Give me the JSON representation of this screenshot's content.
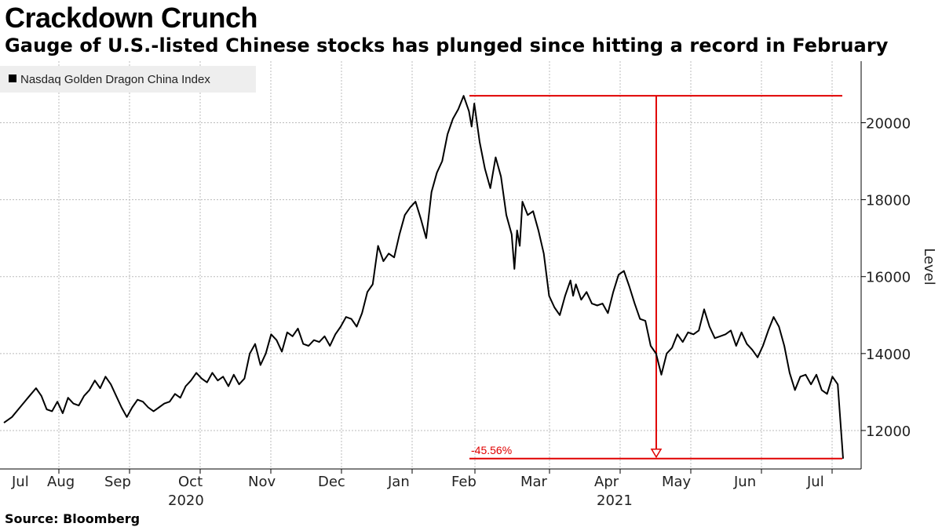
{
  "header": {
    "title": "Crackdown Crunch",
    "subtitle": "Gauge of U.S.-listed Chinese stocks has plunged since hitting a record in February"
  },
  "footer": {
    "source": "Source: Bloomberg"
  },
  "colors": {
    "line": "#000000",
    "annotation": "#e00000",
    "grid": "#bbbbbb",
    "legend_bg": "#eeeeee"
  },
  "chart_data": {
    "type": "line",
    "title": "Crackdown Crunch",
    "ylabel": "Level",
    "xlabel": "",
    "ylim": [
      11000,
      21600
    ],
    "yticks": [
      12000,
      14000,
      16000,
      18000,
      20000
    ],
    "x_month_labels": [
      "Jul",
      "Aug",
      "Sep",
      "Oct",
      "Nov",
      "Dec",
      "Jan",
      "Feb",
      "Mar",
      "Apr",
      "May",
      "Jun",
      "Jul"
    ],
    "year_labels": [
      "2020",
      "2021"
    ],
    "legend": [
      "Nasdaq Golden Dragon China Index"
    ],
    "legend_position": "top-left",
    "annotations": [
      {
        "type": "peak_line",
        "value": 20700
      },
      {
        "type": "trough_line",
        "value": 11270
      },
      {
        "type": "percent_change",
        "label": "-45.56%"
      }
    ],
    "series": [
      {
        "name": "Nasdaq Golden Dragon China Index",
        "note": "x = trading-day index from early Jul 2020 to late Jul 2021",
        "points": [
          [
            0,
            12200
          ],
          [
            3,
            12350
          ],
          [
            6,
            12600
          ],
          [
            9,
            12850
          ],
          [
            12,
            13100
          ],
          [
            14,
            12900
          ],
          [
            16,
            12550
          ],
          [
            18,
            12500
          ],
          [
            20,
            12750
          ],
          [
            22,
            12450
          ],
          [
            24,
            12850
          ],
          [
            26,
            12700
          ],
          [
            28,
            12650
          ],
          [
            30,
            12900
          ],
          [
            32,
            13050
          ],
          [
            34,
            13300
          ],
          [
            36,
            13100
          ],
          [
            38,
            13400
          ],
          [
            40,
            13200
          ],
          [
            42,
            12900
          ],
          [
            44,
            12600
          ],
          [
            46,
            12350
          ],
          [
            48,
            12600
          ],
          [
            50,
            12800
          ],
          [
            52,
            12750
          ],
          [
            54,
            12600
          ],
          [
            56,
            12500
          ],
          [
            58,
            12600
          ],
          [
            60,
            12700
          ],
          [
            62,
            12750
          ],
          [
            64,
            12950
          ],
          [
            66,
            12850
          ],
          [
            68,
            13150
          ],
          [
            70,
            13300
          ],
          [
            72,
            13500
          ],
          [
            74,
            13350
          ],
          [
            76,
            13250
          ],
          [
            78,
            13500
          ],
          [
            80,
            13300
          ],
          [
            82,
            13400
          ],
          [
            84,
            13150
          ],
          [
            86,
            13450
          ],
          [
            88,
            13200
          ],
          [
            90,
            13350
          ],
          [
            92,
            14000
          ],
          [
            94,
            14250
          ],
          [
            96,
            13700
          ],
          [
            98,
            14000
          ],
          [
            100,
            14500
          ],
          [
            102,
            14350
          ],
          [
            104,
            14050
          ],
          [
            106,
            14550
          ],
          [
            108,
            14450
          ],
          [
            110,
            14650
          ],
          [
            112,
            14250
          ],
          [
            114,
            14200
          ],
          [
            116,
            14350
          ],
          [
            118,
            14300
          ],
          [
            120,
            14450
          ],
          [
            122,
            14200
          ],
          [
            124,
            14500
          ],
          [
            126,
            14700
          ],
          [
            128,
            14950
          ],
          [
            130,
            14900
          ],
          [
            132,
            14700
          ],
          [
            134,
            15050
          ],
          [
            136,
            15600
          ],
          [
            138,
            15800
          ],
          [
            140,
            16800
          ],
          [
            142,
            16400
          ],
          [
            144,
            16600
          ],
          [
            146,
            16500
          ],
          [
            148,
            17100
          ],
          [
            150,
            17600
          ],
          [
            152,
            17800
          ],
          [
            154,
            17950
          ],
          [
            156,
            17500
          ],
          [
            158,
            17000
          ],
          [
            160,
            18200
          ],
          [
            162,
            18700
          ],
          [
            164,
            19000
          ],
          [
            166,
            19700
          ],
          [
            168,
            20100
          ],
          [
            170,
            20350
          ],
          [
            172,
            20700
          ],
          [
            174,
            20300
          ],
          [
            175,
            19900
          ],
          [
            176,
            20500
          ],
          [
            178,
            19500
          ],
          [
            180,
            18800
          ],
          [
            182,
            18300
          ],
          [
            184,
            19100
          ],
          [
            186,
            18600
          ],
          [
            188,
            17600
          ],
          [
            190,
            17100
          ],
          [
            191,
            16200
          ],
          [
            192,
            17200
          ],
          [
            193,
            16800
          ],
          [
            194,
            17950
          ],
          [
            196,
            17600
          ],
          [
            198,
            17700
          ],
          [
            200,
            17200
          ],
          [
            202,
            16600
          ],
          [
            204,
            15500
          ],
          [
            206,
            15200
          ],
          [
            208,
            15000
          ],
          [
            210,
            15500
          ],
          [
            212,
            15900
          ],
          [
            213,
            15500
          ],
          [
            214,
            15800
          ],
          [
            216,
            15400
          ],
          [
            218,
            15600
          ],
          [
            220,
            15300
          ],
          [
            222,
            15250
          ],
          [
            224,
            15300
          ],
          [
            226,
            15050
          ],
          [
            228,
            15600
          ],
          [
            230,
            16050
          ],
          [
            232,
            16150
          ],
          [
            234,
            15750
          ],
          [
            236,
            15300
          ],
          [
            238,
            14900
          ],
          [
            240,
            14850
          ],
          [
            242,
            14200
          ],
          [
            244,
            14000
          ],
          [
            246,
            13450
          ],
          [
            248,
            14000
          ],
          [
            250,
            14150
          ],
          [
            252,
            14500
          ],
          [
            254,
            14300
          ],
          [
            256,
            14550
          ],
          [
            258,
            14500
          ],
          [
            260,
            14600
          ],
          [
            262,
            15150
          ],
          [
            264,
            14700
          ],
          [
            266,
            14400
          ],
          [
            268,
            14450
          ],
          [
            270,
            14500
          ],
          [
            272,
            14600
          ],
          [
            274,
            14200
          ],
          [
            276,
            14550
          ],
          [
            278,
            14250
          ],
          [
            280,
            14100
          ],
          [
            282,
            13900
          ],
          [
            284,
            14200
          ],
          [
            286,
            14600
          ],
          [
            288,
            14950
          ],
          [
            290,
            14700
          ],
          [
            292,
            14200
          ],
          [
            294,
            13500
          ],
          [
            296,
            13050
          ],
          [
            298,
            13400
          ],
          [
            300,
            13450
          ],
          [
            302,
            13200
          ],
          [
            304,
            13450
          ],
          [
            306,
            13050
          ],
          [
            308,
            12950
          ],
          [
            310,
            13400
          ],
          [
            312,
            13200
          ],
          [
            314,
            11270
          ]
        ]
      }
    ]
  }
}
